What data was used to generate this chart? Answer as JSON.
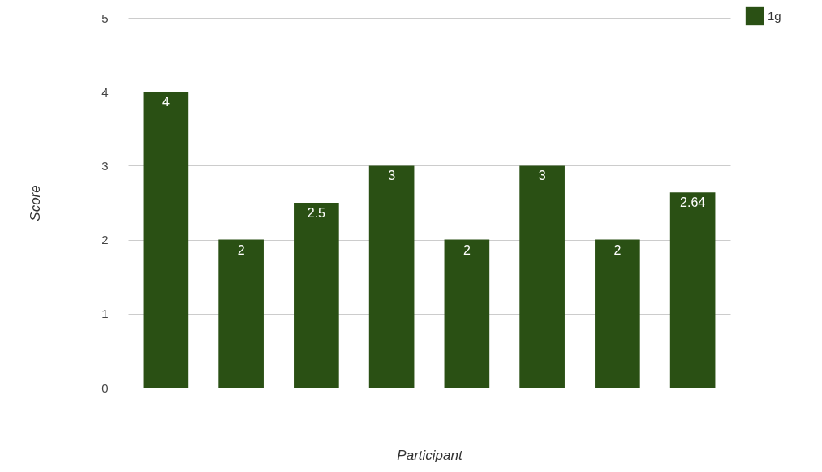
{
  "chart_data": {
    "type": "bar",
    "xlabel": "Participant",
    "ylabel": "Score",
    "categories": [
      null,
      null,
      null,
      null,
      null,
      null,
      null,
      null
    ],
    "series": [
      {
        "name": "1g",
        "color": "#2a5014",
        "values": [
          4,
          2,
          2.5,
          3,
          2,
          3,
          2,
          2.64
        ]
      }
    ],
    "ylim": [
      0,
      5
    ],
    "yticks": [
      0,
      1,
      2,
      3,
      4,
      5
    ],
    "grid": "y",
    "legend": "top right",
    "data_labels": true,
    "tick_labels": "y"
  }
}
